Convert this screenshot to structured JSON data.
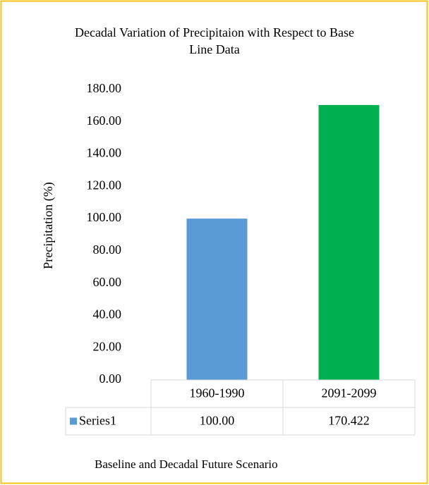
{
  "chart_data": {
    "type": "bar",
    "title": "Decadal Variation of Precipitaion with Respect to Base Line Data",
    "y_label": "Precipitation  (%)",
    "x_label": "Baseline and Decadal Future Scenario",
    "categories": [
      "1960-1990",
      "2091-2099"
    ],
    "series": [
      {
        "name": "Series1",
        "color": "#5b9bd5",
        "point_colors": [
          "#5b9bd5",
          "#00b050"
        ],
        "values": [
          100,
          170.422
        ],
        "value_labels": [
          "100.00",
          "170.422"
        ]
      }
    ],
    "ylim": [
      0,
      180
    ],
    "yticks": [
      {
        "value": 0,
        "label": "0.00"
      },
      {
        "value": 20,
        "label": "20.00"
      },
      {
        "value": 40,
        "label": "40.00"
      },
      {
        "value": 60,
        "label": "60.00"
      },
      {
        "value": 80,
        "label": "80.00"
      },
      {
        "value": 100,
        "label": "100.00"
      },
      {
        "value": 120,
        "label": "120.00"
      },
      {
        "value": 140,
        "label": "140.00"
      },
      {
        "value": 160,
        "label": "160.00"
      },
      {
        "value": 180,
        "label": "180.00"
      }
    ],
    "grid": false,
    "data_table": true
  }
}
